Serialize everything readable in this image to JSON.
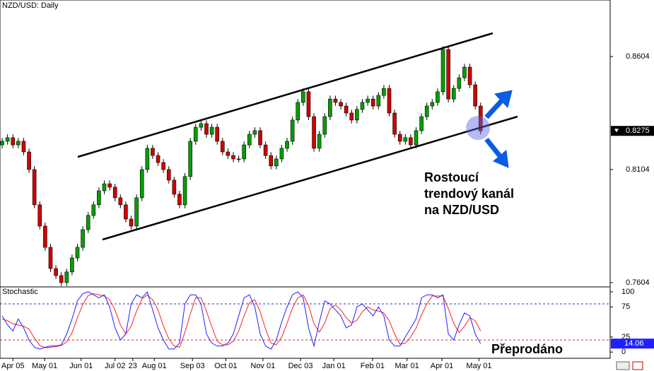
{
  "chart_data": [
    {
      "type": "candlestick",
      "title": "NZD/USD: Daily",
      "annotation": [
        "Rostoucí",
        "trendový kanál",
        "na NZD/USD"
      ],
      "up_color": "#00a000",
      "down_color": "#d00000",
      "xlim": [
        -0.4,
        113.1
      ],
      "xticks": [
        {
          "value": 2,
          "label": "Apr 05"
        },
        {
          "value": 7.9,
          "label": "May 01"
        },
        {
          "value": 14.7,
          "label": "Jun 01"
        },
        {
          "value": 21,
          "label": "Jul 02"
        },
        {
          "value": 24.3,
          "label": "23"
        },
        {
          "value": 28.3,
          "label": "Aug 01"
        },
        {
          "value": 35.4,
          "label": "Sep 03"
        },
        {
          "value": 41.6,
          "label": "Oct 01"
        },
        {
          "value": 48.5,
          "label": "Nov 01"
        },
        {
          "value": 55.5,
          "label": "Dec 03"
        },
        {
          "value": 61.7,
          "label": "Jan 01"
        },
        {
          "value": 68.9,
          "label": "Feb 01"
        },
        {
          "value": 75.3,
          "label": "Mar 01"
        },
        {
          "value": 81.8,
          "label": "Apr 01"
        },
        {
          "value": 88.7,
          "label": "May 01"
        }
      ],
      "ylim": [
        0.7588,
        0.8854
      ],
      "yticks": [
        0.7604,
        0.8104,
        0.8604
      ],
      "candles": [
        [
          0.8213,
          0.8244,
          0.8198,
          0.8229
        ],
        [
          0.8229,
          0.826,
          0.8214,
          0.8245
        ],
        [
          0.8245,
          0.826,
          0.8198,
          0.8213
        ],
        [
          0.8213,
          0.8244,
          0.8198,
          0.8229
        ],
        [
          0.8229,
          0.8244,
          0.8167,
          0.8182
        ],
        [
          0.8182,
          0.8197,
          0.8089,
          0.8104
        ],
        [
          0.8104,
          0.8119,
          0.7933,
          0.7948
        ],
        [
          0.7948,
          0.7963,
          0.7839,
          0.7854
        ],
        [
          0.7854,
          0.7869,
          0.7745,
          0.776
        ],
        [
          0.776,
          0.7775,
          0.7651,
          0.7666
        ],
        [
          0.7666,
          0.7681,
          0.762,
          0.7635
        ],
        [
          0.7635,
          0.765,
          0.7589,
          0.7604
        ],
        [
          0.7604,
          0.7666,
          0.7589,
          0.7651
        ],
        [
          0.7651,
          0.7728,
          0.7636,
          0.7713
        ],
        [
          0.7713,
          0.7775,
          0.7698,
          0.776
        ],
        [
          0.776,
          0.7853,
          0.7745,
          0.7838
        ],
        [
          0.7838,
          0.7916,
          0.7823,
          0.7901
        ],
        [
          0.7901,
          0.7963,
          0.7886,
          0.7948
        ],
        [
          0.7948,
          0.8025,
          0.7933,
          0.801
        ],
        [
          0.801,
          0.8056,
          0.7995,
          0.8041
        ],
        [
          0.8041,
          0.8056,
          0.8011,
          0.8026
        ],
        [
          0.8026,
          0.8041,
          0.7964,
          0.7979
        ],
        [
          0.7979,
          0.7994,
          0.7933,
          0.7948
        ],
        [
          0.7948,
          0.7963,
          0.787,
          0.7885
        ],
        [
          0.7885,
          0.79,
          0.7839,
          0.7854
        ],
        [
          0.7854,
          0.7994,
          0.7839,
          0.7979
        ],
        [
          0.7979,
          0.8119,
          0.7964,
          0.8104
        ],
        [
          0.8104,
          0.8213,
          0.8089,
          0.8198
        ],
        [
          0.8198,
          0.8213,
          0.8151,
          0.8166
        ],
        [
          0.8166,
          0.8181,
          0.812,
          0.8135
        ],
        [
          0.8135,
          0.815,
          0.8089,
          0.8104
        ],
        [
          0.8104,
          0.8119,
          0.8042,
          0.8057
        ],
        [
          0.8057,
          0.8072,
          0.798,
          0.7995
        ],
        [
          0.7995,
          0.801,
          0.7933,
          0.7948
        ],
        [
          0.7948,
          0.8088,
          0.7933,
          0.8073
        ],
        [
          0.8073,
          0.8244,
          0.8058,
          0.8229
        ],
        [
          0.8229,
          0.8306,
          0.8214,
          0.8291
        ],
        [
          0.8291,
          0.8322,
          0.8276,
          0.8307
        ],
        [
          0.8307,
          0.8322,
          0.8245,
          0.826
        ],
        [
          0.826,
          0.8306,
          0.8245,
          0.8291
        ],
        [
          0.8291,
          0.8306,
          0.8214,
          0.8229
        ],
        [
          0.8229,
          0.8244,
          0.8167,
          0.8182
        ],
        [
          0.8182,
          0.8197,
          0.8151,
          0.8166
        ],
        [
          0.8166,
          0.8181,
          0.8136,
          0.8151
        ],
        [
          0.8151,
          0.8166,
          0.8136,
          0.8151
        ],
        [
          0.8151,
          0.8228,
          0.8136,
          0.8213
        ],
        [
          0.8213,
          0.8275,
          0.8198,
          0.826
        ],
        [
          0.826,
          0.8291,
          0.8245,
          0.8276
        ],
        [
          0.8276,
          0.8291,
          0.8198,
          0.8213
        ],
        [
          0.8213,
          0.8228,
          0.8151,
          0.8166
        ],
        [
          0.8166,
          0.8181,
          0.8105,
          0.812
        ],
        [
          0.812,
          0.8166,
          0.8105,
          0.8151
        ],
        [
          0.8151,
          0.8213,
          0.8136,
          0.8198
        ],
        [
          0.8198,
          0.8244,
          0.8183,
          0.8229
        ],
        [
          0.8229,
          0.8338,
          0.8214,
          0.8323
        ],
        [
          0.8323,
          0.8416,
          0.8308,
          0.8401
        ],
        [
          0.8401,
          0.8463,
          0.8386,
          0.8448
        ],
        [
          0.8448,
          0.8463,
          0.8323,
          0.8338
        ],
        [
          0.8338,
          0.8353,
          0.8183,
          0.8198
        ],
        [
          0.8198,
          0.8275,
          0.8183,
          0.826
        ],
        [
          0.826,
          0.8353,
          0.8245,
          0.8338
        ],
        [
          0.8338,
          0.8431,
          0.8323,
          0.8416
        ],
        [
          0.8416,
          0.8431,
          0.8386,
          0.8401
        ],
        [
          0.8401,
          0.8416,
          0.837,
          0.8385
        ],
        [
          0.8385,
          0.84,
          0.8339,
          0.8354
        ],
        [
          0.8354,
          0.8369,
          0.8308,
          0.8323
        ],
        [
          0.8323,
          0.8385,
          0.8308,
          0.837
        ],
        [
          0.837,
          0.8416,
          0.8355,
          0.8401
        ],
        [
          0.8401,
          0.8431,
          0.8386,
          0.8416
        ],
        [
          0.8416,
          0.8431,
          0.837,
          0.8385
        ],
        [
          0.8385,
          0.8447,
          0.837,
          0.8432
        ],
        [
          0.8432,
          0.8478,
          0.8417,
          0.8463
        ],
        [
          0.8463,
          0.8478,
          0.8339,
          0.8354
        ],
        [
          0.8354,
          0.8369,
          0.8245,
          0.826
        ],
        [
          0.826,
          0.8275,
          0.8214,
          0.8229
        ],
        [
          0.8229,
          0.826,
          0.8214,
          0.8245
        ],
        [
          0.8245,
          0.826,
          0.8198,
          0.8213
        ],
        [
          0.8213,
          0.8291,
          0.8198,
          0.8276
        ],
        [
          0.8276,
          0.8353,
          0.8261,
          0.8338
        ],
        [
          0.8338,
          0.84,
          0.8323,
          0.8385
        ],
        [
          0.8385,
          0.8416,
          0.837,
          0.8401
        ],
        [
          0.8401,
          0.8463,
          0.8386,
          0.8448
        ],
        [
          0.8448,
          0.865,
          0.8433,
          0.8635
        ],
        [
          0.8635,
          0.865,
          0.8401,
          0.8416
        ],
        [
          0.8416,
          0.8478,
          0.8401,
          0.8463
        ],
        [
          0.8463,
          0.8525,
          0.8448,
          0.851
        ],
        [
          0.851,
          0.8572,
          0.8495,
          0.8557
        ],
        [
          0.8557,
          0.8572,
          0.8464,
          0.8479
        ],
        [
          0.8479,
          0.8494,
          0.837,
          0.8385
        ],
        [
          0.8385,
          0.84,
          0.826,
          0.8275
        ]
      ]
    },
    {
      "type": "line",
      "title": "Stochastic",
      "note": "Přeprodáno",
      "ylim": [
        -8,
        107
      ],
      "yticks": [
        0,
        25,
        75,
        100
      ],
      "levels": [
        80,
        20
      ],
      "level_colors": [
        "#3030c0",
        "#c03030"
      ],
      "series": [
        {
          "color": "#2020ff",
          "values": [
            60,
            45,
            35,
            55,
            40,
            20,
            8,
            5,
            8,
            10,
            10,
            12,
            30,
            55,
            85,
            97,
            100,
            95,
            90,
            95,
            75,
            40,
            20,
            30,
            80,
            95,
            90,
            100,
            70,
            40,
            20,
            5,
            5,
            15,
            80,
            95,
            95,
            80,
            30,
            15,
            10,
            10,
            15,
            30,
            60,
            90,
            95,
            75,
            30,
            10,
            5,
            20,
            50,
            75,
            95,
            100,
            90,
            40,
            10,
            50,
            85,
            80,
            70,
            60,
            40,
            45,
            75,
            80,
            70,
            60,
            75,
            60,
            20,
            10,
            10,
            25,
            40,
            55,
            90,
            95,
            95,
            90,
            95,
            30,
            20,
            45,
            65,
            60,
            30,
            14.06
          ]
        },
        {
          "color": "#ff2020",
          "values": [
            55,
            52,
            47,
            45,
            43,
            38,
            23,
            11,
            7,
            8,
            9,
            11,
            17,
            32,
            57,
            79,
            94,
            97,
            95,
            93,
            87,
            70,
            45,
            30,
            43,
            68,
            88,
            95,
            87,
            70,
            43,
            22,
            10,
            8,
            33,
            63,
            90,
            90,
            68,
            42,
            18,
            12,
            12,
            18,
            35,
            60,
            82,
            87,
            67,
            38,
            15,
            12,
            25,
            48,
            73,
            90,
            95,
            77,
            47,
            33,
            48,
            72,
            78,
            70,
            57,
            48,
            53,
            67,
            75,
            70,
            68,
            65,
            52,
            30,
            13,
            15,
            25,
            40,
            62,
            80,
            93,
            93,
            93,
            72,
            48,
            32,
            43,
            57,
            52,
            35
          ]
        }
      ]
    }
  ]
}
